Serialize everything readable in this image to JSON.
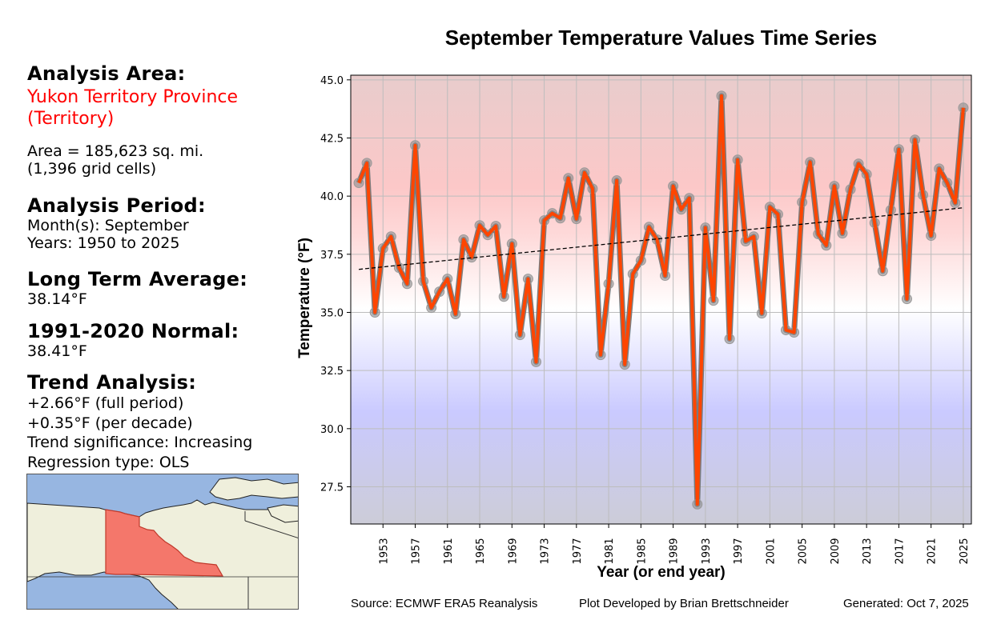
{
  "info": {
    "area_heading": "Analysis Area:",
    "area_name_line1": "Yukon Territory Province",
    "area_name_line2": "(Territory)",
    "area_size": "Area = 185,623 sq. mi.",
    "grid_cells": "(1,396 grid cells)",
    "period_heading": "Analysis Period:",
    "months": "Month(s): September",
    "years": "Years: 1950 to 2025",
    "lta_heading": "Long Term Average:",
    "lta_value": "38.14°F",
    "normal_heading": "1991-2020 Normal:",
    "normal_value": "38.41°F",
    "trend_heading": "Trend Analysis:",
    "trend_full": "+2.66°F (full period)",
    "trend_decade": "+0.35°F (per decade)",
    "trend_significance": "Trend significance: Increasing",
    "regression_type": "Regression type: OLS"
  },
  "colors": {
    "area_name": "#ff0000",
    "line": "#ff4500",
    "line_outline": "#707070",
    "marker": "#8c8c8c",
    "map_water": "#97b6e1",
    "map_land": "#efefdc",
    "map_highlight": "#f4776b",
    "warm": "#ffc8c8",
    "cool": "#c8c8ff"
  },
  "footer": {
    "source": "Source: ECMWF ERA5 Reanalysis",
    "credit": "Plot Developed by Brian Brettschneider",
    "generated": "Generated: Oct 7, 2025"
  },
  "chart_data": {
    "type": "line",
    "title": "September Temperature Values Time Series",
    "xlabel": "Year (or end year)",
    "ylabel": "Temperature (°F)",
    "xlim": [
      1949,
      2026
    ],
    "ylim": [
      25.9,
      45.2
    ],
    "grid": true,
    "x_ticks": [
      1953,
      1957,
      1961,
      1965,
      1969,
      1973,
      1977,
      1981,
      1985,
      1989,
      1993,
      1997,
      2001,
      2005,
      2009,
      2013,
      2017,
      2021,
      2025
    ],
    "y_ticks": [
      "27.5",
      "30.0",
      "32.5",
      "35.0",
      "37.5",
      "40.0",
      "42.5",
      "45.0"
    ],
    "series": [
      {
        "name": "September temperature",
        "x": [
          1950,
          1951,
          1952,
          1953,
          1954,
          1955,
          1956,
          1957,
          1958,
          1959,
          1960,
          1961,
          1962,
          1963,
          1964,
          1965,
          1966,
          1967,
          1968,
          1969,
          1970,
          1971,
          1972,
          1973,
          1974,
          1975,
          1976,
          1977,
          1978,
          1979,
          1980,
          1981,
          1982,
          1983,
          1984,
          1985,
          1986,
          1987,
          1988,
          1989,
          1990,
          1991,
          1992,
          1993,
          1994,
          1995,
          1996,
          1997,
          1998,
          1999,
          2000,
          2001,
          2002,
          2003,
          2004,
          2005,
          2006,
          2007,
          2008,
          2009,
          2010,
          2011,
          2012,
          2013,
          2014,
          2015,
          2016,
          2017,
          2018,
          2019,
          2020,
          2021,
          2022,
          2023,
          2024,
          2025
        ],
        "values": [
          40.57,
          41.42,
          35.0,
          37.75,
          38.26,
          36.92,
          36.23,
          42.18,
          36.34,
          35.2,
          35.89,
          36.44,
          34.93,
          38.13,
          37.37,
          38.74,
          38.33,
          38.71,
          35.68,
          37.95,
          34.03,
          36.44,
          32.87,
          38.95,
          39.26,
          39.05,
          40.77,
          39.02,
          41.01,
          40.32,
          33.17,
          36.23,
          40.67,
          32.76,
          36.65,
          37.23,
          38.67,
          38.13,
          36.58,
          40.43,
          39.43,
          39.91,
          26.75,
          38.64,
          35.51,
          44.31,
          33.86,
          41.56,
          38.06,
          38.26,
          34.96,
          39.53,
          39.22,
          34.24,
          34.14,
          39.74,
          41.46,
          38.37,
          37.88,
          40.43,
          38.4,
          40.29,
          41.39,
          40.94,
          38.85,
          36.78,
          39.4,
          42.01,
          35.58,
          42.42,
          40.05,
          38.3,
          41.18,
          40.57,
          39.71,
          43.8
        ]
      },
      {
        "name": "OLS trend",
        "style": "dashed",
        "x": [
          1950,
          2025
        ],
        "values": [
          36.85,
          39.5
        ]
      }
    ]
  }
}
